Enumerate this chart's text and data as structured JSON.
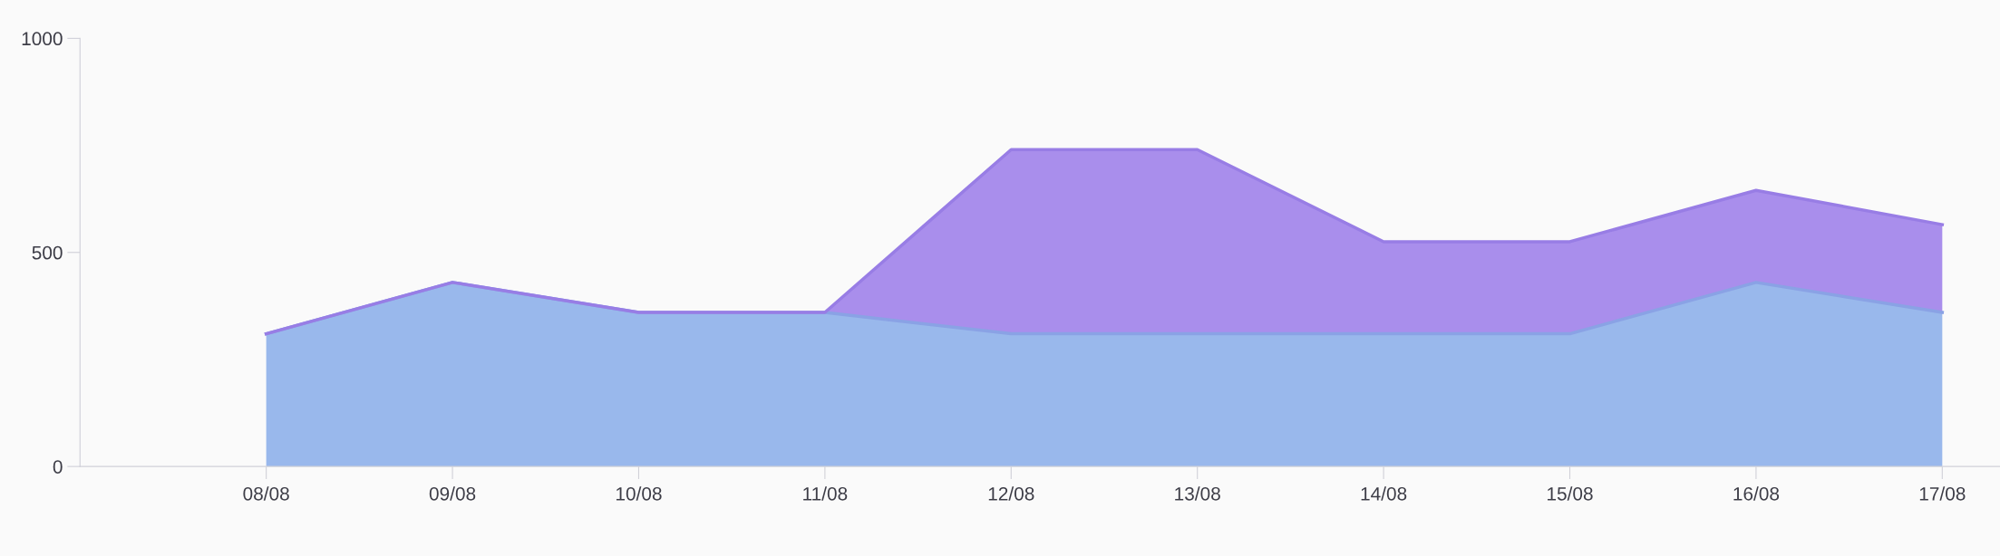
{
  "chart_data": {
    "type": "area",
    "stacked": true,
    "categories": [
      "08/08",
      "09/08",
      "10/08",
      "11/08",
      "12/08",
      "13/08",
      "14/08",
      "15/08",
      "16/08",
      "17/08"
    ],
    "series": [
      {
        "color": "#99b8ec",
        "values": [
          310,
          430,
          360,
          360,
          310,
          310,
          310,
          310,
          430,
          360
        ]
      },
      {
        "color": "#a98eec",
        "values": [
          0,
          0,
          0,
          0,
          430,
          430,
          215,
          215,
          215,
          205
        ]
      }
    ],
    "ylim": [
      0,
      1000
    ],
    "yticks": [
      0,
      500,
      1000
    ],
    "grid": false
  }
}
